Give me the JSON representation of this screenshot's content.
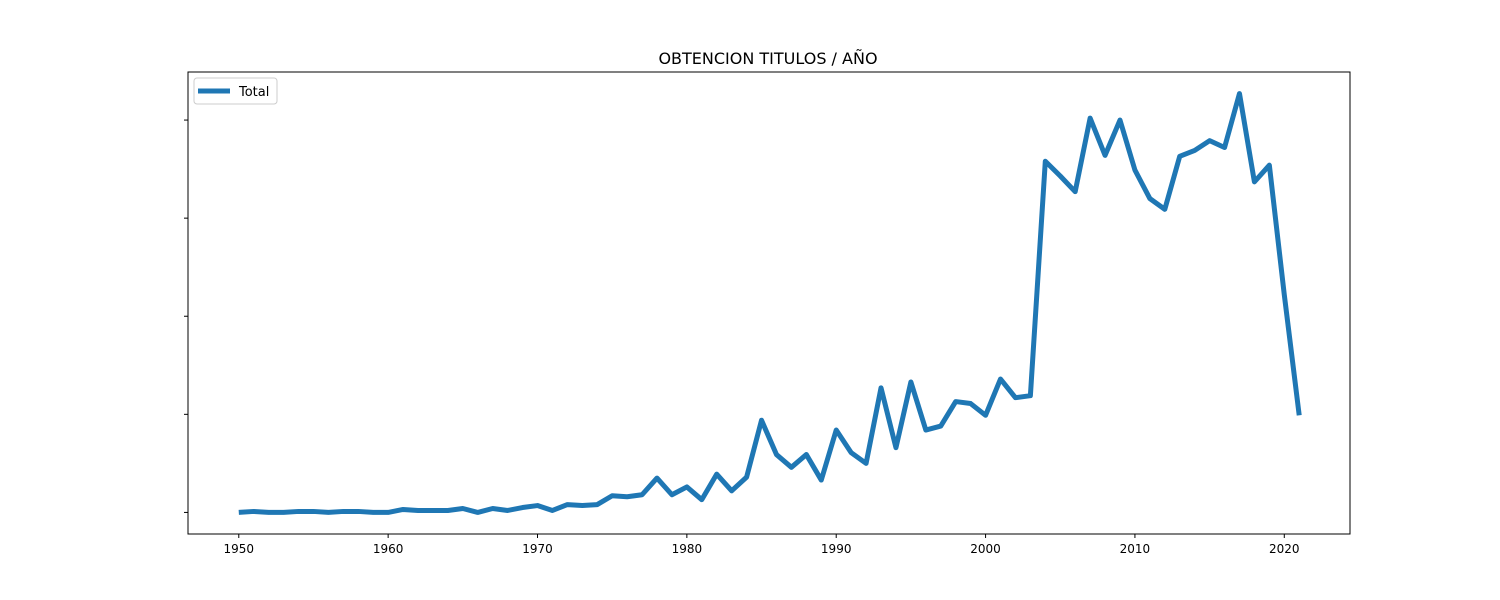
{
  "chart_data": {
    "type": "line",
    "title": "OBTENCION TITULOS / AÑO",
    "xlabel": "",
    "ylabel": "",
    "xlim": [
      1946.6,
      2024.4
    ],
    "ylim": [
      -22,
      449
    ],
    "xticks": [
      1950,
      1960,
      1970,
      1980,
      1990,
      2000,
      2010,
      2020
    ],
    "yticks": [
      0,
      100,
      200,
      300,
      400
    ],
    "yticklabels_visible": false,
    "grid": false,
    "legend": "top-left",
    "line_color": "#1f77b4",
    "x": [
      1950,
      1951,
      1952,
      1953,
      1954,
      1955,
      1956,
      1957,
      1958,
      1959,
      1960,
      1961,
      1962,
      1963,
      1964,
      1965,
      1966,
      1967,
      1968,
      1969,
      1970,
      1971,
      1972,
      1973,
      1974,
      1975,
      1976,
      1977,
      1978,
      1979,
      1980,
      1981,
      1982,
      1983,
      1984,
      1985,
      1986,
      1987,
      1988,
      1989,
      1990,
      1991,
      1992,
      1993,
      1994,
      1995,
      1996,
      1997,
      1998,
      1999,
      2000,
      2001,
      2002,
      2003,
      2004,
      2005,
      2006,
      2007,
      2008,
      2009,
      2010,
      2011,
      2012,
      2013,
      2014,
      2015,
      2016,
      2017,
      2018,
      2019,
      2020,
      2021
    ],
    "series": [
      {
        "name": "Total",
        "values": [
          0,
          1,
          0,
          0,
          1,
          1,
          0,
          1,
          1,
          0,
          0,
          3,
          2,
          2,
          2,
          4,
          0,
          4,
          2,
          5,
          7,
          2,
          8,
          7,
          8,
          17,
          16,
          18,
          35,
          18,
          26,
          13,
          39,
          22,
          36,
          94,
          59,
          46,
          59,
          33,
          84,
          61,
          50,
          127,
          66,
          133,
          84,
          88,
          113,
          111,
          99,
          136,
          117,
          119,
          358,
          343,
          327,
          402,
          364,
          400,
          349,
          320,
          309,
          363,
          369,
          379,
          372,
          427,
          337,
          354,
          222,
          99
        ]
      }
    ]
  }
}
